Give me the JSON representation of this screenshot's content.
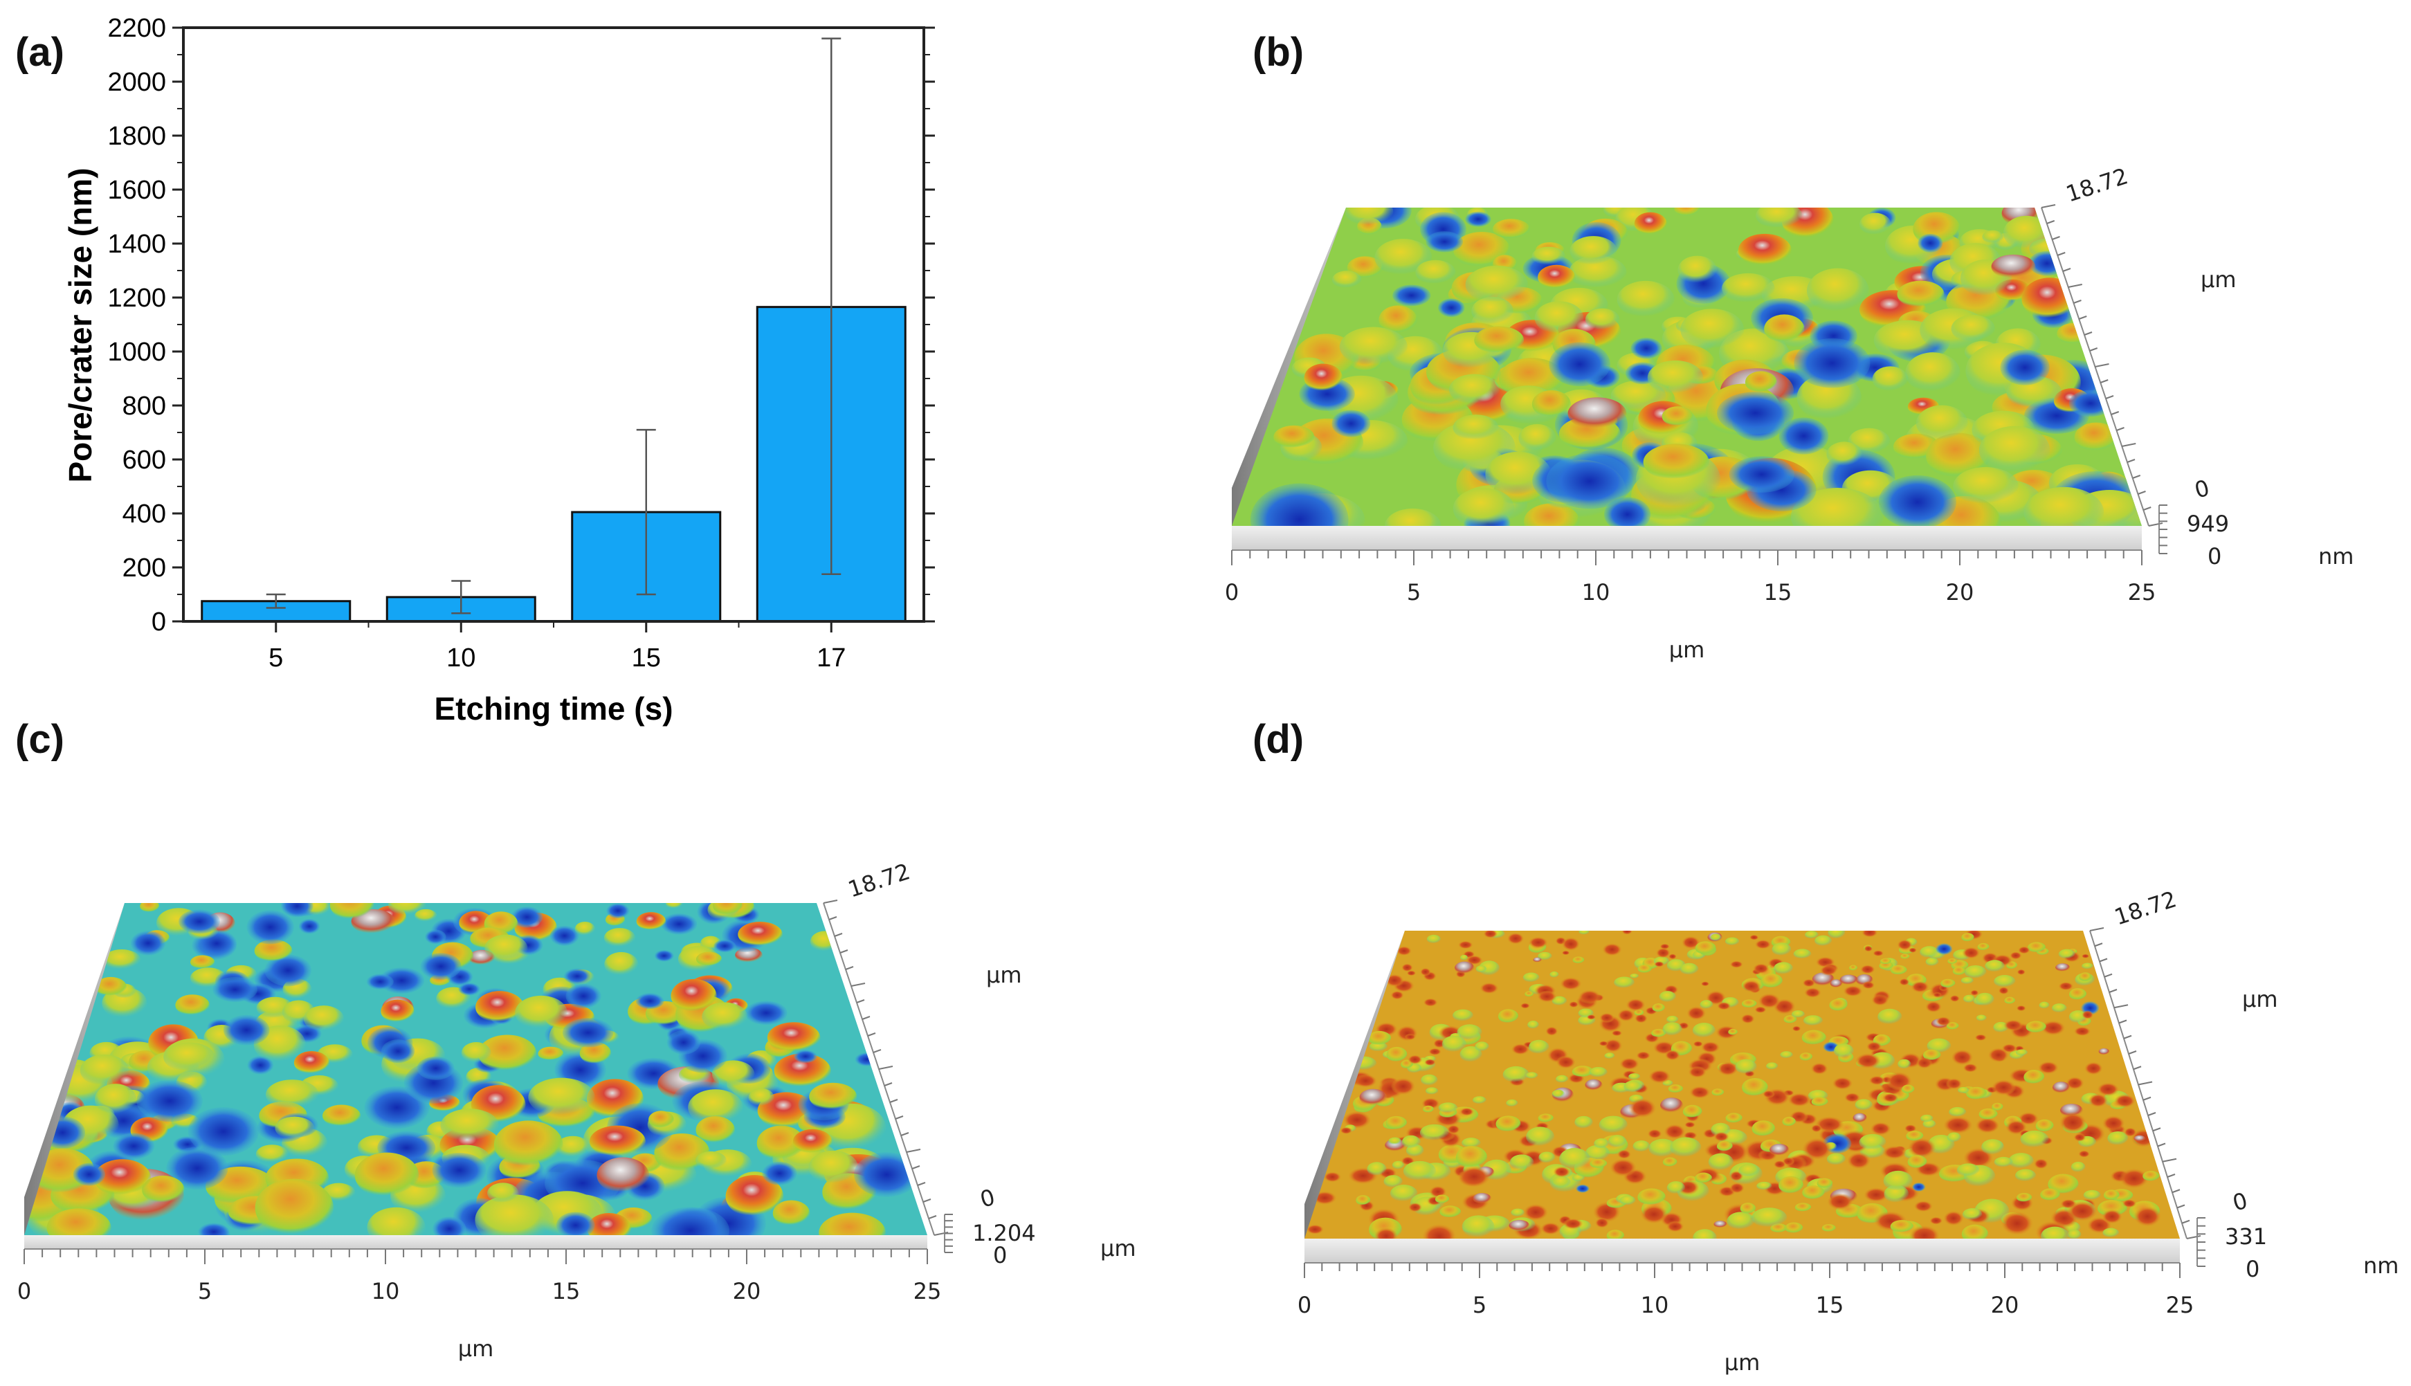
{
  "panels": {
    "a": "(a)",
    "b": "(b)",
    "c": "(c)",
    "d": "(d)"
  },
  "chart_data": {
    "type": "bar",
    "categories": [
      "5",
      "10",
      "15",
      "17"
    ],
    "values": [
      75,
      90,
      405,
      1165
    ],
    "error_low": [
      50,
      30,
      100,
      175
    ],
    "error_high": [
      100,
      150,
      710,
      2160
    ],
    "xlabel": "Etching time (s)",
    "ylabel": "Pore/crater size (nm)",
    "ylim": [
      0,
      2200
    ],
    "yticks": [
      0,
      200,
      400,
      600,
      800,
      1000,
      1200,
      1400,
      1600,
      1800,
      2000,
      2200
    ],
    "bar_color": "#14a5f5",
    "grid": false
  },
  "afm": {
    "b": {
      "y_range_label": "18.72",
      "y_unit": "µm",
      "z_top": "0",
      "z_max": "949",
      "z_zero": "0",
      "z_unit": "nm",
      "x_ticks": [
        "0",
        "5",
        "10",
        "15",
        "20",
        "25"
      ],
      "x_unit": "µm"
    },
    "c": {
      "y_range_label": "18.72",
      "y_unit": "µm",
      "z_top": "0",
      "z_max": "1.204",
      "z_zero": "0",
      "z_unit": "µm",
      "x_ticks": [
        "0",
        "5",
        "10",
        "15",
        "20",
        "25"
      ],
      "x_unit": "µm"
    },
    "d": {
      "y_range_label": "18.72",
      "y_unit": "µm",
      "z_top": "0",
      "z_max": "331",
      "z_zero": "0",
      "z_unit": "nm",
      "x_ticks": [
        "0",
        "5",
        "10",
        "15",
        "20",
        "25"
      ],
      "x_unit": "µm"
    }
  }
}
